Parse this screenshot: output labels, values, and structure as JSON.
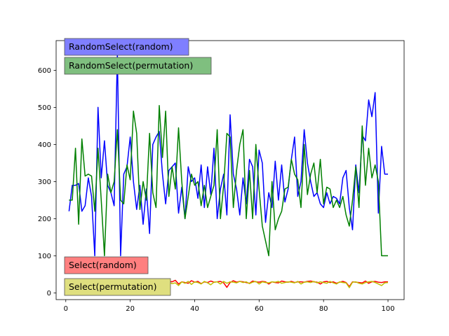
{
  "colors": {
    "RandomSelect(random)": "#0000ff",
    "RandomSelect(permutation)": "#008000",
    "Select(random)": "#ff0000",
    "Select(permutation)": "#bfbf00",
    "label_RandomSelect(random)": "#7f7fff",
    "label_RandomSelect(permutation)": "#7fbf7f",
    "label_Select(random)": "#ff7f7f",
    "label_Select(permutation)": "#dfdf7f"
  },
  "chart_data": {
    "type": "line",
    "title": "",
    "xlabel": "",
    "ylabel": "",
    "xlim": [
      -3,
      105
    ],
    "ylim": [
      -18,
      680
    ],
    "xticks": [
      0,
      20,
      40,
      60,
      80,
      100
    ],
    "yticks": [
      0,
      100,
      200,
      300,
      400,
      500,
      600
    ],
    "grid": false,
    "legend": "none",
    "series": [
      {
        "name": "RandomSelect(random)",
        "x": [
          1,
          2,
          3,
          4,
          5,
          6,
          7,
          8,
          9,
          10,
          11,
          12,
          13,
          14,
          15,
          16,
          17,
          18,
          19,
          20,
          21,
          22,
          23,
          24,
          25,
          26,
          27,
          28,
          29,
          30,
          31,
          32,
          33,
          34,
          35,
          36,
          37,
          38,
          39,
          40,
          41,
          42,
          43,
          44,
          45,
          46,
          47,
          48,
          49,
          50,
          51,
          52,
          53,
          54,
          55,
          56,
          57,
          58,
          59,
          60,
          61,
          62,
          63,
          64,
          65,
          66,
          67,
          68,
          69,
          70,
          71,
          72,
          73,
          74,
          75,
          76,
          77,
          78,
          79,
          80,
          81,
          82,
          83,
          84,
          85,
          86,
          87,
          88,
          89,
          90,
          91,
          92,
          93,
          94,
          95,
          96,
          97,
          98,
          99,
          100
        ],
        "y": [
          220,
          290,
          290,
          295,
          220,
          235,
          310,
          260,
          100,
          500,
          310,
          410,
          290,
          270,
          235,
          645,
          100,
          320,
          340,
          420,
          300,
          225,
          290,
          185,
          280,
          160,
          400,
          420,
          435,
          320,
          240,
          330,
          340,
          350,
          215,
          285,
          200,
          340,
          300,
          310,
          255,
          345,
          230,
          340,
          265,
          390,
          200,
          280,
          320,
          210,
          480,
          320,
          280,
          210,
          310,
          240,
          360,
          340,
          210,
          385,
          350,
          190,
          270,
          230,
          355,
          250,
          345,
          245,
          280,
          360,
          420,
          260,
          300,
          440,
          350,
          300,
          260,
          270,
          240,
          230,
          270,
          240,
          260,
          255,
          240,
          310,
          330,
          230,
          170,
          345,
          270,
          425,
          410,
          520,
          475,
          540,
          215,
          395,
          320,
          320
        ]
      },
      {
        "name": "RandomSelect(permutation)",
        "x": [
          1,
          2,
          3,
          4,
          5,
          6,
          7,
          8,
          9,
          10,
          11,
          12,
          13,
          14,
          15,
          16,
          17,
          18,
          19,
          20,
          21,
          22,
          23,
          24,
          25,
          26,
          27,
          28,
          29,
          30,
          31,
          32,
          33,
          34,
          35,
          36,
          37,
          38,
          39,
          40,
          41,
          42,
          43,
          44,
          45,
          46,
          47,
          48,
          49,
          50,
          51,
          52,
          53,
          54,
          55,
          56,
          57,
          58,
          59,
          60,
          61,
          62,
          63,
          64,
          65,
          66,
          67,
          68,
          69,
          70,
          71,
          72,
          73,
          74,
          75,
          76,
          77,
          78,
          79,
          80,
          81,
          82,
          83,
          84,
          85,
          86,
          87,
          88,
          89,
          90,
          91,
          92,
          93,
          94,
          95,
          96,
          97,
          98,
          99,
          100
        ],
        "y": [
          250,
          250,
          390,
          185,
          415,
          315,
          320,
          315,
          220,
          390,
          250,
          100,
          320,
          270,
          300,
          440,
          250,
          240,
          345,
          305,
          490,
          430,
          225,
          300,
          250,
          430,
          270,
          230,
          505,
          365,
          490,
          260,
          340,
          280,
          445,
          300,
          200,
          260,
          320,
          290,
          300,
          235,
          290,
          230,
          260,
          290,
          440,
          200,
          290,
          430,
          420,
          230,
          330,
          400,
          440,
          200,
          330,
          200,
          400,
          280,
          180,
          140,
          100,
          300,
          170,
          200,
          220,
          280,
          285,
          360,
          320,
          305,
          230,
          400,
          265,
          320,
          350,
          270,
          360,
          240,
          285,
          280,
          230,
          250,
          230,
          260,
          210,
          180,
          250,
          340,
          230,
          450,
          290,
          390,
          310,
          345,
          300,
          100,
          100,
          100
        ]
      },
      {
        "name": "Select(random)",
        "x": [
          1,
          2,
          3,
          4,
          5,
          6,
          7,
          8,
          9,
          10,
          11,
          12,
          13,
          14,
          15,
          16,
          17,
          18,
          19,
          20,
          21,
          22,
          23,
          24,
          25,
          26,
          27,
          28,
          29,
          30,
          31,
          32,
          33,
          34,
          35,
          36,
          37,
          38,
          39,
          40,
          41,
          42,
          43,
          44,
          45,
          46,
          47,
          48,
          49,
          50,
          51,
          52,
          53,
          54,
          55,
          56,
          57,
          58,
          59,
          60,
          61,
          62,
          63,
          64,
          65,
          66,
          67,
          68,
          69,
          70,
          71,
          72,
          73,
          74,
          75,
          76,
          77,
          78,
          79,
          80,
          81,
          82,
          83,
          84,
          85,
          86,
          87,
          88,
          89,
          90,
          91,
          92,
          93,
          94,
          95,
          96,
          97,
          98,
          99,
          100
        ],
        "y": [
          32,
          28,
          31,
          25,
          28,
          30,
          33,
          26,
          30,
          28,
          34,
          27,
          30,
          29,
          31,
          28,
          32,
          26,
          30,
          33,
          29,
          31,
          27,
          25,
          32,
          30,
          28,
          31,
          33,
          27,
          29,
          32,
          30,
          34,
          24,
          30,
          28,
          26,
          33,
          29,
          31,
          25,
          30,
          28,
          32,
          29,
          30,
          31,
          27,
          15,
          28,
          33,
          29,
          31,
          30,
          28,
          26,
          32,
          30,
          29,
          31,
          30,
          24,
          30,
          28,
          27,
          32,
          30,
          29,
          31,
          28,
          30,
          30,
          29,
          31,
          32,
          30,
          29,
          24,
          30,
          31,
          28,
          30,
          26,
          29,
          31,
          28,
          17,
          30,
          29,
          28,
          27,
          32,
          26,
          30,
          31,
          29,
          28,
          30,
          30
        ]
      },
      {
        "name": "Select(permutation)",
        "x": [
          1,
          2,
          3,
          4,
          5,
          6,
          7,
          8,
          9,
          10,
          11,
          12,
          13,
          14,
          15,
          16,
          17,
          18,
          19,
          20,
          21,
          22,
          23,
          24,
          25,
          26,
          27,
          28,
          29,
          30,
          31,
          32,
          33,
          34,
          35,
          36,
          37,
          38,
          39,
          40,
          41,
          42,
          43,
          44,
          45,
          46,
          47,
          48,
          49,
          50,
          51,
          52,
          53,
          54,
          55,
          56,
          57,
          58,
          59,
          60,
          61,
          62,
          63,
          64,
          65,
          66,
          67,
          68,
          69,
          70,
          71,
          72,
          73,
          74,
          75,
          76,
          77,
          78,
          79,
          80,
          81,
          82,
          83,
          84,
          85,
          86,
          87,
          88,
          89,
          90,
          91,
          92,
          93,
          94,
          95,
          96,
          97,
          98,
          99,
          100
        ],
        "y": [
          28,
          30,
          26,
          31,
          29,
          27,
          30,
          25,
          31,
          28,
          30,
          26,
          27,
          32,
          29,
          26,
          28,
          33,
          27,
          31,
          29,
          25,
          30,
          28,
          32,
          24,
          30,
          27,
          31,
          28,
          30,
          29,
          25,
          27,
          20,
          30,
          26,
          31,
          23,
          30,
          28,
          24,
          31,
          27,
          22,
          29,
          30,
          24,
          31,
          26,
          30,
          29,
          27,
          31,
          28,
          30,
          25,
          29,
          31,
          24,
          30,
          28,
          27,
          30,
          29,
          31,
          26,
          28,
          30,
          29,
          27,
          31,
          24,
          29,
          30,
          28,
          31,
          27,
          30,
          28,
          26,
          31,
          27,
          24,
          30,
          28,
          27,
          14,
          29,
          30,
          26,
          24,
          28,
          30,
          31,
          28,
          24,
          20,
          27,
          28
        ]
      }
    ],
    "labels": [
      {
        "text": "RandomSelect(random)",
        "series": "RandomSelect(random)"
      },
      {
        "text": "RandomSelect(permutation)",
        "series": "RandomSelect(permutation)"
      },
      {
        "text": "Select(random)",
        "series": "Select(random)"
      },
      {
        "text": "Select(permutation)",
        "series": "Select(permutation)"
      }
    ]
  }
}
